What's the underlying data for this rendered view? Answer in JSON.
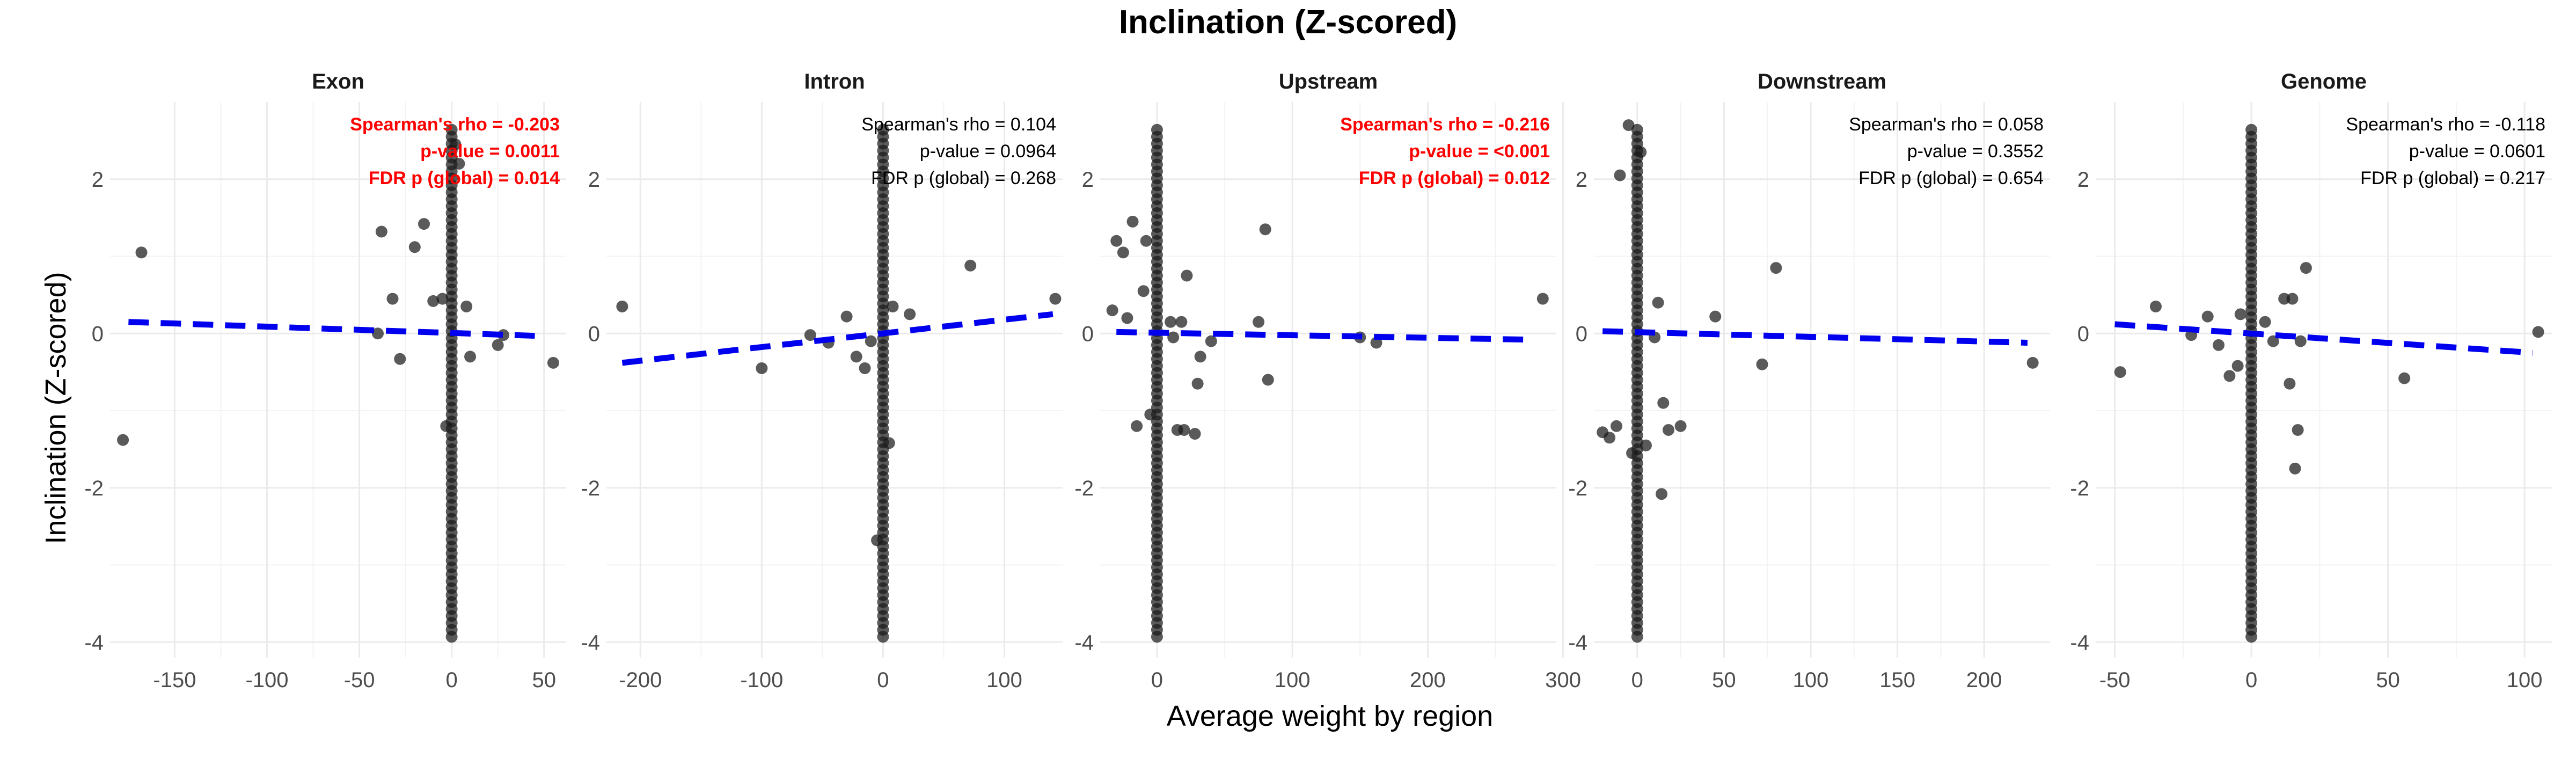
{
  "chart_data": {
    "type": "scatter",
    "title": "Inclination (Z-scored)",
    "xlabel": "Average weight by region",
    "ylabel": "Inclination (Z-scored)",
    "ylim": [
      -4.2,
      3.0
    ],
    "yticks": [
      -4,
      -2,
      0,
      2
    ],
    "grid": true,
    "colors": {
      "points": "#1a1a1a",
      "trend": "#0000ee",
      "significant": "#ff0000",
      "normal": "#000000",
      "grid": "#ebebeb"
    },
    "panels": [
      {
        "name": "Exon",
        "xlim": [
          -185,
          62
        ],
        "xticks": [
          -150,
          -100,
          -50,
          0,
          50
        ],
        "trend": [
          [
            -175,
            0.15
          ],
          [
            45,
            -0.03
          ]
        ],
        "significant": true,
        "stats": [
          "Spearman's rho = -0.203",
          "p-value = 0.0011",
          "FDR p (global) = 0.014"
        ],
        "points": [
          [
            -178,
            -1.38
          ],
          [
            -168,
            1.05
          ],
          [
            -38,
            1.32
          ],
          [
            -32,
            0.45
          ],
          [
            -28,
            -0.33
          ],
          [
            -20,
            1.12
          ],
          [
            -15,
            1.42
          ],
          [
            -10,
            0.42
          ],
          [
            -5,
            0.45
          ],
          [
            -3,
            -1.2
          ],
          [
            2,
            2.45
          ],
          [
            4,
            2.2
          ],
          [
            8,
            0.35
          ],
          [
            10,
            -0.3
          ],
          [
            25,
            -0.15
          ],
          [
            28,
            -0.02
          ],
          [
            55,
            -0.38
          ],
          [
            -40,
            0.0
          ]
        ],
        "columns": [
          [
            0,
            -3.93,
            2.7,
            0.09
          ]
        ]
      },
      {
        "name": "Intron",
        "xlim": [
          -228,
          148
        ],
        "xticks": [
          -200,
          -100,
          0,
          100
        ],
        "trend": [
          [
            -215,
            -0.38
          ],
          [
            140,
            0.25
          ]
        ],
        "significant": false,
        "stats": [
          "Spearman's rho = 0.104",
          "p-value = 0.0964",
          "FDR p (global) = 0.268"
        ],
        "points": [
          [
            -215,
            0.35
          ],
          [
            -100,
            -0.45
          ],
          [
            -60,
            -0.02
          ],
          [
            -45,
            -0.12
          ],
          [
            -30,
            0.22
          ],
          [
            -22,
            -0.3
          ],
          [
            -15,
            -0.45
          ],
          [
            -10,
            -0.1
          ],
          [
            -5,
            -2.68
          ],
          [
            5,
            -1.42
          ],
          [
            8,
            0.35
          ],
          [
            22,
            0.25
          ],
          [
            72,
            0.88
          ],
          [
            142,
            0.45
          ]
        ],
        "columns": [
          [
            0,
            -3.93,
            2.7,
            0.09
          ]
        ]
      },
      {
        "name": "Upstream",
        "xlim": [
          -42,
          295
        ],
        "xticks": [
          0,
          100,
          200,
          300
        ],
        "trend": [
          [
            -30,
            0.02
          ],
          [
            275,
            -0.08
          ]
        ],
        "significant": true,
        "stats": [
          "Spearman's rho = -0.216",
          "p-value = <0.001",
          "FDR p (global) = 0.012"
        ],
        "points": [
          [
            -33,
            0.3
          ],
          [
            -30,
            1.2
          ],
          [
            -25,
            1.05
          ],
          [
            -22,
            0.2
          ],
          [
            -18,
            1.45
          ],
          [
            -15,
            -1.2
          ],
          [
            -10,
            0.55
          ],
          [
            -8,
            1.2
          ],
          [
            -5,
            -1.05
          ],
          [
            10,
            0.15
          ],
          [
            12,
            -0.05
          ],
          [
            15,
            -1.25
          ],
          [
            18,
            0.15
          ],
          [
            20,
            -1.25
          ],
          [
            22,
            0.75
          ],
          [
            28,
            -1.3
          ],
          [
            30,
            -0.65
          ],
          [
            32,
            -0.3
          ],
          [
            40,
            -0.1
          ],
          [
            75,
            0.15
          ],
          [
            80,
            1.35
          ],
          [
            82,
            -0.6
          ],
          [
            150,
            -0.05
          ],
          [
            162,
            -0.12
          ],
          [
            285,
            0.45
          ]
        ],
        "columns": [
          [
            0,
            -3.93,
            2.7,
            0.09
          ]
        ]
      },
      {
        "name": "Downstream",
        "xlim": [
          -25,
          238
        ],
        "xticks": [
          0,
          50,
          100,
          150,
          200
        ],
        "trend": [
          [
            -20,
            0.03
          ],
          [
            225,
            -0.12
          ]
        ],
        "significant": false,
        "stats": [
          "Spearman's rho = 0.058",
          "p-value = 0.3552",
          "FDR p (global) = 0.654"
        ],
        "points": [
          [
            -20,
            -1.28
          ],
          [
            -16,
            -1.35
          ],
          [
            -12,
            -1.2
          ],
          [
            -10,
            2.05
          ],
          [
            -5,
            2.7
          ],
          [
            -3,
            -1.55
          ],
          [
            2,
            2.35
          ],
          [
            5,
            -1.45
          ],
          [
            10,
            -0.05
          ],
          [
            12,
            0.4
          ],
          [
            14,
            -2.08
          ],
          [
            15,
            -0.9
          ],
          [
            18,
            -1.25
          ],
          [
            25,
            -1.2
          ],
          [
            45,
            0.22
          ],
          [
            72,
            -0.4
          ],
          [
            80,
            0.85
          ],
          [
            228,
            -0.38
          ]
        ],
        "columns": [
          [
            0,
            -3.93,
            2.7,
            0.09
          ]
        ]
      },
      {
        "name": "Genome",
        "xlim": [
          -57,
          110
        ],
        "xticks": [
          -50,
          0,
          50,
          100
        ],
        "trend": [
          [
            -50,
            0.12
          ],
          [
            103,
            -0.25
          ]
        ],
        "significant": false,
        "stats": [
          "Spearman's rho = -0.118",
          "p-value = 0.0601",
          "FDR p (global) = 0.217"
        ],
        "points": [
          [
            -48,
            -0.5
          ],
          [
            -35,
            0.35
          ],
          [
            -22,
            -0.02
          ],
          [
            -16,
            0.22
          ],
          [
            -12,
            -0.15
          ],
          [
            -8,
            -0.55
          ],
          [
            -5,
            -0.42
          ],
          [
            -4,
            0.25
          ],
          [
            5,
            0.15
          ],
          [
            8,
            -0.1
          ],
          [
            12,
            0.45
          ],
          [
            14,
            -0.65
          ],
          [
            15,
            0.45
          ],
          [
            16,
            -1.75
          ],
          [
            17,
            -1.25
          ],
          [
            18,
            -0.1
          ],
          [
            20,
            0.85
          ],
          [
            56,
            -0.58
          ],
          [
            105,
            0.02
          ]
        ],
        "columns": [
          [
            0,
            -3.93,
            2.7,
            0.09
          ]
        ]
      }
    ]
  }
}
